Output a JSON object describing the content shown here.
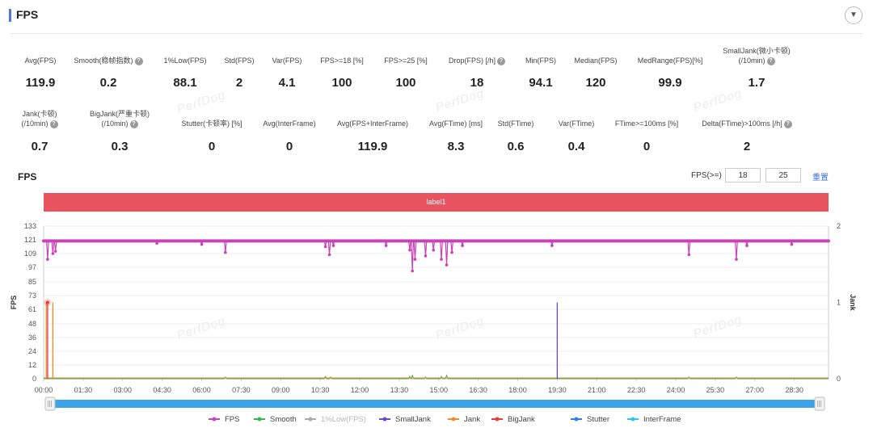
{
  "panel": {
    "title": "FPS",
    "collapse_icon": "▼"
  },
  "metrics_row1": [
    {
      "label": "Avg(FPS)",
      "value": "119.9",
      "help": false
    },
    {
      "label": "Smooth(稳帧指数)",
      "value": "0.2",
      "help": true
    },
    {
      "label": "1%Low(FPS)",
      "value": "88.1",
      "help": false
    },
    {
      "label": "Std(FPS)",
      "value": "2",
      "help": false
    },
    {
      "label": "Var(FPS)",
      "value": "4.1",
      "help": false
    },
    {
      "label": "FPS>=18 [%]",
      "value": "100",
      "help": false
    },
    {
      "label": "FPS>=25 [%]",
      "value": "100",
      "help": false
    },
    {
      "label": "Drop(FPS) [/h]",
      "value": "18",
      "help": true
    },
    {
      "label": "Min(FPS)",
      "value": "94.1",
      "help": false
    },
    {
      "label": "Median(FPS)",
      "value": "120",
      "help": false
    },
    {
      "label": "MedRange(FPS)[%]",
      "value": "99.9",
      "help": false
    },
    {
      "label": "SmallJank(微小卡顿)",
      "label2": "(/10min)",
      "value": "1.7",
      "help": true
    }
  ],
  "metrics_row2": [
    {
      "label": "Jank(卡顿)",
      "label2": "(/10min)",
      "value": "0.7",
      "help": true
    },
    {
      "label": "BigJank(严重卡顿)",
      "label2": "(/10min)",
      "value": "0.3",
      "help": true
    },
    {
      "label": "Stutter(卡顿率) [%]",
      "value": "0",
      "help": false
    },
    {
      "label": "Avg(InterFrame)",
      "value": "0",
      "help": false
    },
    {
      "label": "Avg(FPS+InterFrame)",
      "value": "119.9",
      "help": false
    },
    {
      "label": "Avg(FTime) [ms]",
      "value": "8.3",
      "help": false
    },
    {
      "label": "Std(FTime)",
      "value": "0.6",
      "help": false
    },
    {
      "label": "Var(FTime)",
      "value": "0.4",
      "help": false
    },
    {
      "label": "FTime>=100ms [%]",
      "value": "0",
      "help": false
    },
    {
      "label": "Delta(FTime)>100ms [/h]",
      "value": "2",
      "help": true
    }
  ],
  "watermark": "PerfDog",
  "chart_section": {
    "title": "FPS",
    "filter_label": "FPS(>=)",
    "filter_value_1": "18",
    "filter_value_2": "25",
    "reset_label": "重置",
    "label_bar": "label1"
  },
  "chart_data": {
    "type": "line",
    "ylabel_left": "FPS",
    "ylabel_right": "Jank",
    "y_ticks_left": [
      "0",
      "12",
      "24",
      "36",
      "48",
      "61",
      "73",
      "85",
      "97",
      "109",
      "121",
      "133"
    ],
    "ylim_left": [
      0,
      133
    ],
    "y_ticks_right": [
      "0",
      "1",
      "2"
    ],
    "ylim_right": [
      0,
      2
    ],
    "x_ticks": [
      "00:00",
      "01:30",
      "03:00",
      "04:30",
      "06:00",
      "07:30",
      "09:00",
      "10:30",
      "12:00",
      "13:30",
      "15:00",
      "16:30",
      "18:00",
      "19:30",
      "21:00",
      "22:30",
      "24:00",
      "25:30",
      "27:00",
      "28:30"
    ],
    "x_range_minutes": [
      0,
      29.8
    ],
    "grid": true,
    "legend_position": "bottom",
    "colors": {
      "fps": "#c842b8",
      "smooth": "#3fae4f",
      "low1": "#aaaaaa",
      "smalljank": "#6a47d6",
      "jank": "#f08a2a",
      "bigjank": "#e33b3b",
      "stutter": "#2f7fe0",
      "interframe": "#2bc6e8",
      "scrollbar": "#3ea3e8"
    },
    "series": [
      {
        "name": "FPS",
        "key": "fps",
        "baseline": 120
      },
      {
        "name": "Smooth",
        "key": "smooth",
        "baseline": 0
      },
      {
        "name": "1%Low(FPS)",
        "key": "low1"
      },
      {
        "name": "SmallJank",
        "key": "smalljank",
        "events": [
          19.5
        ]
      },
      {
        "name": "Jank",
        "key": "jank",
        "events": [
          0.1,
          0.35
        ]
      },
      {
        "name": "BigJank",
        "key": "bigjank",
        "events": [
          0.15
        ]
      },
      {
        "name": "Stutter",
        "key": "stutter"
      },
      {
        "name": "InterFrame",
        "key": "interframe"
      }
    ],
    "fps_dips": [
      {
        "t": 0.15,
        "v": 104
      },
      {
        "t": 0.35,
        "v": 109
      },
      {
        "t": 0.45,
        "v": 111
      },
      {
        "t": 4.3,
        "v": 118
      },
      {
        "t": 6.0,
        "v": 117
      },
      {
        "t": 6.9,
        "v": 110
      },
      {
        "t": 10.7,
        "v": 115
      },
      {
        "t": 10.85,
        "v": 108
      },
      {
        "t": 11.0,
        "v": 116
      },
      {
        "t": 13.0,
        "v": 116
      },
      {
        "t": 13.9,
        "v": 112
      },
      {
        "t": 14.0,
        "v": 94
      },
      {
        "t": 14.1,
        "v": 104
      },
      {
        "t": 14.5,
        "v": 107
      },
      {
        "t": 14.8,
        "v": 112
      },
      {
        "t": 15.1,
        "v": 104
      },
      {
        "t": 15.3,
        "v": 99
      },
      {
        "t": 15.5,
        "v": 110
      },
      {
        "t": 15.9,
        "v": 116
      },
      {
        "t": 19.3,
        "v": 116
      },
      {
        "t": 24.5,
        "v": 108
      },
      {
        "t": 26.3,
        "v": 104
      },
      {
        "t": 26.7,
        "v": 116
      },
      {
        "t": 28.4,
        "v": 117
      }
    ],
    "smooth_bumps": [
      {
        "t": 6.9,
        "v": 1.5
      },
      {
        "t": 10.7,
        "v": 2
      },
      {
        "t": 10.9,
        "v": 1.5
      },
      {
        "t": 13.9,
        "v": 2
      },
      {
        "t": 14.0,
        "v": 3
      },
      {
        "t": 14.5,
        "v": 1.5
      },
      {
        "t": 15.1,
        "v": 2
      },
      {
        "t": 15.3,
        "v": 3
      },
      {
        "t": 24.5,
        "v": 1.5
      },
      {
        "t": 26.3,
        "v": 1.5
      }
    ]
  },
  "scrollbar_icon": "drag-handle"
}
